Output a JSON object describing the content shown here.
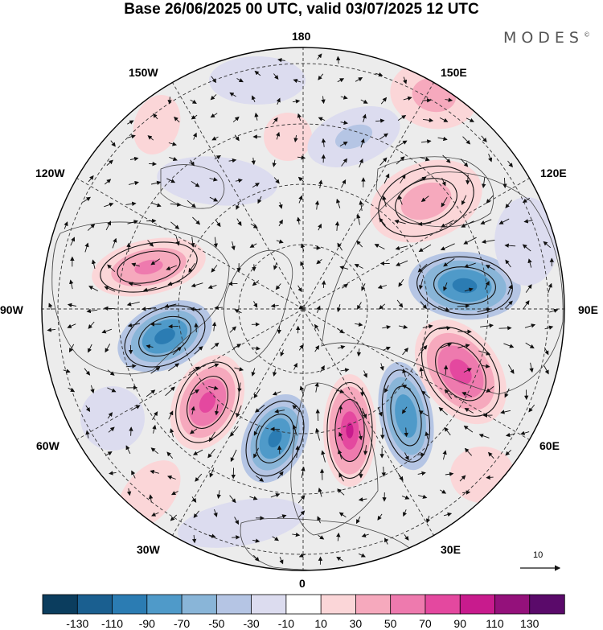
{
  "title": "Base 26/06/2025 00 UTC, valid 03/07/2025 12 UTC",
  "brand": "MODES",
  "brand_mark": "©",
  "longitude_labels": {
    "lon_180": "180",
    "lon_150e": "150E",
    "lon_120e": "120E",
    "lon_90e": "90E",
    "lon_60e": "60E",
    "lon_30e": "30E",
    "lon_0": "0",
    "lon_30w": "30W",
    "lon_60w": "60W",
    "lon_90w": "90W",
    "lon_120w": "120W",
    "lon_150w": "150W"
  },
  "vector_scale": "10",
  "colorbar": {
    "colors": [
      "#0b3d5e",
      "#1a5f90",
      "#2b7cb3",
      "#4f9ac9",
      "#89b5d8",
      "#b5c5e4",
      "#dcdcef",
      "#ffffff",
      "#fbd6d8",
      "#f6a9bd",
      "#ee7aae",
      "#e4489f",
      "#c81b8d",
      "#94117b",
      "#5a0a6a"
    ],
    "tick_labels": [
      "-130",
      "-110",
      "-90",
      "-70",
      "-50",
      "-30",
      "-10",
      "10",
      "30",
      "50",
      "70",
      "90",
      "110",
      "130"
    ]
  },
  "anomaly_colors": {
    "neg_strong": "#2b7cb3",
    "neg_mid": "#4f9ac9",
    "neg_weak": "#89b5d8",
    "neg_faint": "#b5c5e4",
    "neg_min": "#dcdcef",
    "pos_min": "#fbd6d8",
    "pos_weak": "#f6a9bd",
    "pos_mid": "#ee7aae",
    "pos_strong": "#e4489f",
    "pos_max": "#c81b8d",
    "neutral": "#ececec"
  }
}
